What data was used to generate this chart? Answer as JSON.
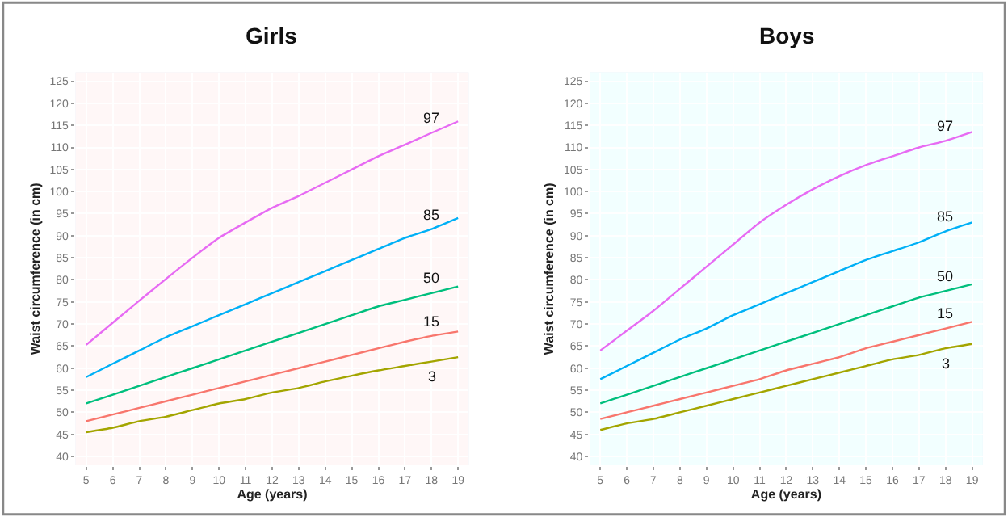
{
  "chart_data": [
    {
      "type": "line",
      "title": "Girls",
      "xlabel": "Age (years)",
      "ylabel": "Waist circumference (in cm)",
      "x": [
        5,
        6,
        7,
        8,
        9,
        10,
        11,
        12,
        13,
        14,
        15,
        16,
        17,
        18,
        19
      ],
      "xlim": [
        4.6,
        19.4
      ],
      "xticks": [
        5,
        6,
        7,
        8,
        9,
        10,
        11,
        12,
        13,
        14,
        15,
        16,
        17,
        18,
        19
      ],
      "ylim": [
        38,
        127
      ],
      "yticks": [
        40,
        45,
        50,
        55,
        60,
        65,
        70,
        75,
        80,
        85,
        90,
        95,
        100,
        105,
        110,
        115,
        120,
        125
      ],
      "grid": true,
      "marker": "none",
      "line_style": "solid",
      "series": [
        {
          "name": "97",
          "color": "#e76bf3",
          "values": [
            65.3,
            70.3,
            75.3,
            80.2,
            85,
            89.5,
            93,
            96.3,
            99,
            102,
            105,
            108,
            110.6,
            113.3,
            115.9
          ]
        },
        {
          "name": "85",
          "color": "#00b0f6",
          "values": [
            58,
            61,
            64,
            67,
            69.5,
            72,
            74.5,
            77,
            79.5,
            82,
            84.5,
            87,
            89.5,
            91.5,
            94
          ]
        },
        {
          "name": "50",
          "color": "#00bf7d",
          "values": [
            52,
            54,
            56,
            58,
            60,
            62,
            64,
            66,
            68,
            70,
            72,
            74,
            75.5,
            77,
            78.5
          ]
        },
        {
          "name": "15",
          "color": "#f8766d",
          "values": [
            48,
            49.5,
            51,
            52.5,
            54,
            55.5,
            57,
            58.5,
            60,
            61.5,
            63,
            64.5,
            66,
            67.3,
            68.3
          ]
        },
        {
          "name": "3",
          "color": "#a3a500",
          "values": [
            45.5,
            46.5,
            48,
            49,
            50.5,
            52,
            53,
            54.5,
            55.5,
            57,
            58.3,
            59.5,
            60.5,
            61.5,
            62.5
          ]
        }
      ]
    },
    {
      "type": "line",
      "title": "Boys",
      "xlabel": "Age (years)",
      "ylabel": "Waist circumference (in cm)",
      "x": [
        5,
        6,
        7,
        8,
        9,
        10,
        11,
        12,
        13,
        14,
        15,
        16,
        17,
        18,
        19
      ],
      "xlim": [
        4.6,
        19.4
      ],
      "xticks": [
        5,
        6,
        7,
        8,
        9,
        10,
        11,
        12,
        13,
        14,
        15,
        16,
        17,
        18,
        19
      ],
      "ylim": [
        38,
        127
      ],
      "yticks": [
        40,
        45,
        50,
        55,
        60,
        65,
        70,
        75,
        80,
        85,
        90,
        95,
        100,
        105,
        110,
        115,
        120,
        125
      ],
      "grid": true,
      "marker": "none",
      "line_style": "solid",
      "series": [
        {
          "name": "97",
          "color": "#e76bf3",
          "values": [
            64,
            68.5,
            73,
            78,
            83,
            88,
            93,
            97,
            100.5,
            103.5,
            106,
            108,
            110,
            111.5,
            113.5
          ]
        },
        {
          "name": "85",
          "color": "#00b0f6",
          "values": [
            57.5,
            60.5,
            63.5,
            66.5,
            69,
            72,
            74.5,
            77,
            79.5,
            82,
            84.5,
            86.5,
            88.5,
            91,
            93
          ]
        },
        {
          "name": "50",
          "color": "#00bf7d",
          "values": [
            52,
            54,
            56,
            58,
            60,
            62,
            64,
            66,
            68,
            70,
            72,
            74,
            76,
            77.5,
            79
          ]
        },
        {
          "name": "15",
          "color": "#f8766d",
          "values": [
            48.5,
            50,
            51.5,
            53,
            54.5,
            56,
            57.5,
            59.5,
            61,
            62.5,
            64.5,
            66,
            67.5,
            69,
            70.5
          ]
        },
        {
          "name": "3",
          "color": "#a3a500",
          "values": [
            46,
            47.5,
            48.5,
            50,
            51.5,
            53,
            54.5,
            56,
            57.5,
            59,
            60.5,
            62,
            63,
            64.5,
            65.5
          ]
        }
      ]
    }
  ]
}
